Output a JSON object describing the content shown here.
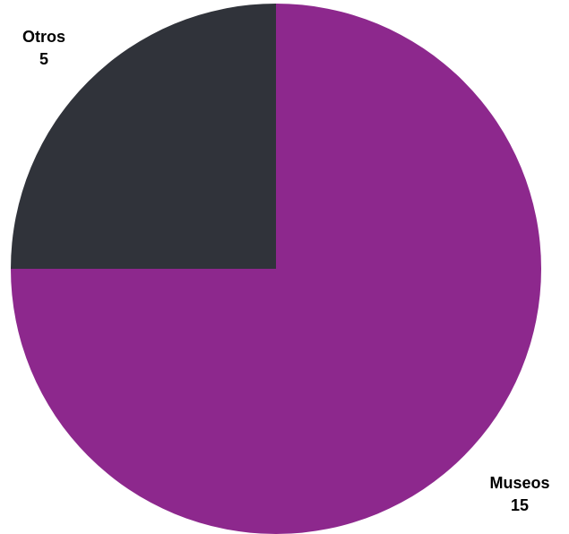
{
  "chart_data": {
    "type": "pie",
    "title": "",
    "start_angle_deg": 0,
    "direction": "clockwise",
    "slices": [
      {
        "label": "Museos",
        "value": 15,
        "color": "#8d288d"
      },
      {
        "label": "Otros",
        "value": 5,
        "color": "#30333a"
      }
    ]
  }
}
